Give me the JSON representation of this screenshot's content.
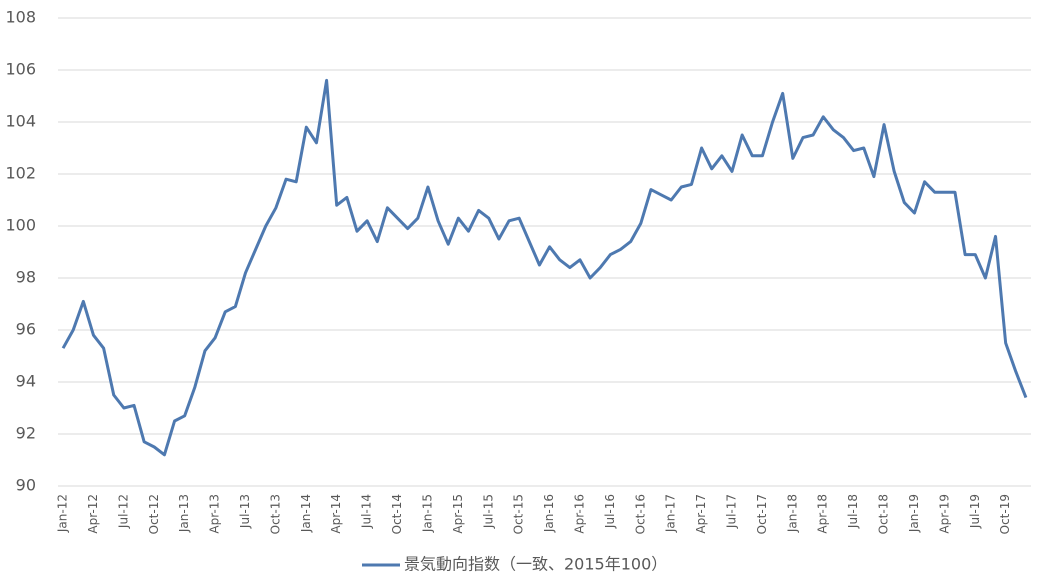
{
  "chart_data": {
    "type": "line",
    "categories": [
      "Jan-12",
      null,
      null,
      "Apr-12",
      null,
      null,
      "Jul-12",
      null,
      null,
      "Oct-12",
      null,
      null,
      "Jan-13",
      null,
      null,
      "Apr-13",
      null,
      null,
      "Jul-13",
      null,
      null,
      "Oct-13",
      null,
      null,
      "Jan-14",
      null,
      null,
      "Apr-14",
      null,
      null,
      "Jul-14",
      null,
      null,
      "Oct-14",
      null,
      null,
      "Jan-15",
      null,
      null,
      "Apr-15",
      null,
      null,
      "Jul-15",
      null,
      null,
      "Oct-15",
      null,
      null,
      "Jan-16",
      null,
      null,
      "Apr-16",
      null,
      null,
      "Jul-16",
      null,
      null,
      "Oct-16",
      null,
      null,
      "Jan-17",
      null,
      null,
      "Apr-17",
      null,
      null,
      "Jul-17",
      null,
      null,
      "Oct-17",
      null,
      null,
      "Jan-18",
      null,
      null,
      "Apr-18",
      null,
      null,
      "Jul-18",
      null,
      null,
      "Oct-18",
      null,
      null,
      "Jan-19",
      null,
      null,
      "Apr-19",
      null,
      null,
      "Jul-19",
      null,
      null,
      "Oct-19",
      null,
      null
    ],
    "series": [
      {
        "name": "景気動向指数（一致、2015年100）",
        "color": "#4e79b0",
        "values": [
          95.3,
          96.0,
          97.1,
          95.8,
          95.3,
          93.5,
          93.0,
          93.1,
          91.7,
          91.5,
          91.2,
          92.5,
          92.7,
          93.8,
          95.2,
          95.7,
          96.7,
          96.9,
          98.2,
          99.1,
          100.0,
          100.7,
          101.8,
          101.7,
          103.8,
          103.2,
          105.6,
          100.8,
          101.1,
          99.8,
          100.2,
          99.4,
          100.7,
          100.3,
          99.9,
          100.3,
          101.5,
          100.2,
          99.3,
          100.3,
          99.8,
          100.6,
          100.3,
          99.5,
          100.2,
          100.3,
          99.4,
          98.5,
          99.2,
          98.7,
          98.4,
          98.7,
          98.0,
          98.4,
          98.9,
          99.1,
          99.4,
          100.1,
          101.4,
          101.2,
          101.0,
          101.5,
          101.6,
          103.0,
          102.2,
          102.7,
          102.1,
          103.5,
          102.7,
          102.7,
          104.0,
          105.1,
          102.6,
          103.4,
          103.5,
          104.2,
          103.7,
          103.4,
          102.9,
          103.0,
          101.9,
          103.9,
          102.1,
          100.9,
          100.5,
          101.7,
          101.3,
          101.3,
          101.3,
          98.9,
          98.9,
          98.0,
          99.6,
          95.5,
          94.4,
          93.4
        ]
      }
    ],
    "ylim": [
      90,
      108
    ],
    "yticks": [
      90,
      92,
      94,
      96,
      98,
      100,
      102,
      104,
      106,
      108
    ],
    "grid": true
  }
}
